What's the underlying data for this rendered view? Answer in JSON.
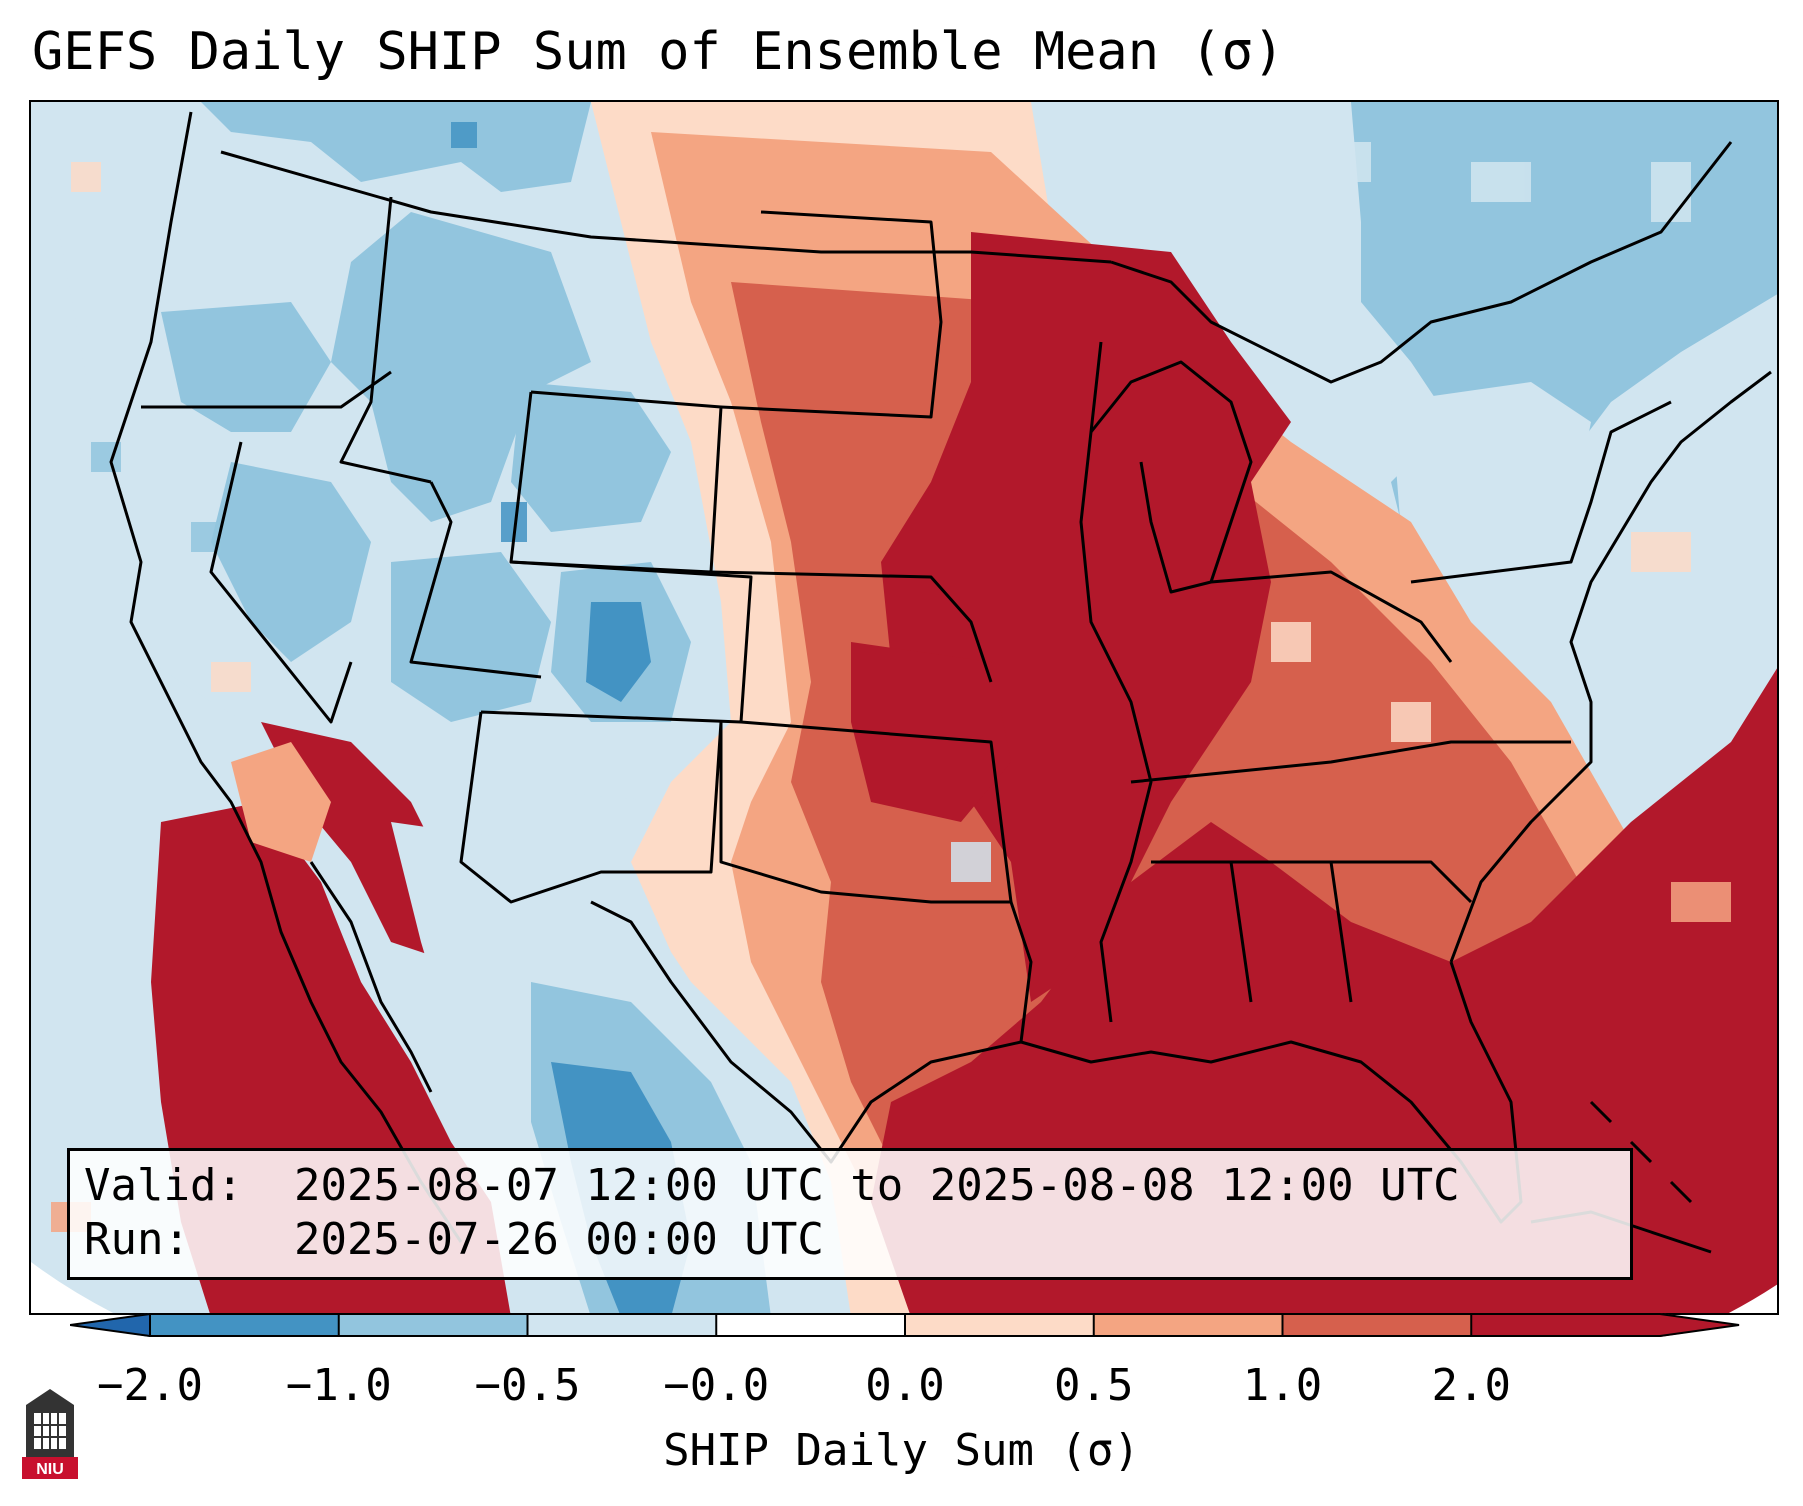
{
  "title": "GEFS Daily SHIP Sum of Ensemble Mean (σ)",
  "info": {
    "valid_label": "Valid:",
    "valid_value": "2025-08-07 12:00 UTC to 2025-08-08 12:00 UTC",
    "run_label": "Run:",
    "run_value": "2025-07-26 00:00 UTC"
  },
  "colorbar": {
    "label": "SHIP Daily Sum (σ)",
    "ticks": [
      "−2.0",
      "−1.0",
      "−0.5",
      "−0.0",
      "0.0",
      "0.5",
      "1.0",
      "2.0"
    ],
    "colors": [
      "#4393c3",
      "#92c5de",
      "#d1e5f0",
      "#ffffff",
      "#fddbc7",
      "#f4a582",
      "#d6604d",
      "#b2182b"
    ],
    "extend_low_color": "#2166ac",
    "extend_high_color": "#b2182b"
  },
  "logo": {
    "text": "NIU"
  }
}
